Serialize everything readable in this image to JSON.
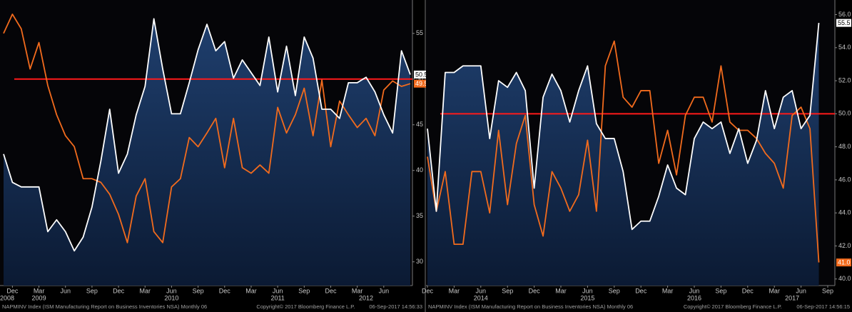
{
  "chart_data": [
    {
      "type": "line",
      "categories": [
        null,
        "Dec",
        null,
        null,
        "Mar",
        null,
        null,
        "Jun",
        null,
        null,
        "Sep",
        null,
        null,
        "Dec",
        null,
        null,
        "Mar",
        null,
        null,
        "Jun",
        null,
        null,
        "Sep",
        null,
        null,
        "Dec",
        null,
        null,
        "Mar",
        null,
        null,
        "Jun",
        null,
        null,
        "Sep",
        null,
        null,
        "Dec",
        null,
        null,
        "Mar",
        null,
        null,
        "Jun",
        null,
        null,
        null
      ],
      "years": [
        "2008",
        null,
        null,
        null,
        "2009",
        null,
        null,
        null,
        null,
        null,
        null,
        null,
        null,
        null,
        null,
        null,
        null,
        null,
        null,
        "2010",
        null,
        null,
        null,
        null,
        null,
        null,
        null,
        null,
        null,
        null,
        null,
        "2011",
        null,
        null,
        null,
        null,
        null,
        null,
        null,
        null,
        null,
        "2012",
        null,
        null,
        null,
        null,
        null
      ],
      "series": [
        {
          "color": "#ffffff",
          "area": true,
          "values": [
            41.8,
            38.7,
            38.2,
            38.2,
            38.2,
            33.3,
            34.6,
            33.3,
            31.2,
            32.7,
            36.0,
            41.0,
            46.7,
            39.7,
            41.8,
            46.1,
            49.2,
            56.6,
            51.1,
            46.2,
            46.2,
            49.6,
            53.2,
            56.0,
            53.1,
            54.1,
            50.1,
            52.1,
            50.7,
            49.3,
            54.6,
            48.6,
            53.6,
            48.2,
            54.6,
            52.3,
            46.7,
            46.7,
            45.7,
            49.6,
            49.6,
            50.2,
            48.6,
            46.1,
            44.1,
            53.1,
            50.5
          ]
        },
        {
          "color": "#f26b1d",
          "area": false,
          "values": [
            55.0,
            57.1,
            55.5,
            51.1,
            54.0,
            49.3,
            46.1,
            43.8,
            42.6,
            39.1,
            39.1,
            38.7,
            37.4,
            35.2,
            32.1,
            37.2,
            39.1,
            33.3,
            32.1,
            38.2,
            39.1,
            43.6,
            42.6,
            44.1,
            45.7,
            40.3,
            45.7,
            40.3,
            39.7,
            40.6,
            39.7,
            46.9,
            44.1,
            46.1,
            49.0,
            43.8,
            49.9,
            42.6,
            47.6,
            46.1,
            44.7,
            45.7,
            43.8,
            48.8,
            49.8,
            49.2,
            49.5
          ]
        }
      ],
      "ylim": [
        27.4,
        58.5
      ],
      "yticks": [
        30,
        35,
        40,
        45,
        50,
        55
      ],
      "hline": 50,
      "hline_color": "#ff1a1a",
      "grid": false,
      "source": "NAPMINV Index (ISM Manufacturing Report on Business Inventories NSA)  Monthly 06",
      "copyright": "Copyright© 2017 Bloomberg Finance L.P.",
      "timestamp": "06-Sep-2017 14:56:33"
    },
    {
      "type": "line",
      "categories": [
        "Dec",
        null,
        null,
        "Mar",
        null,
        null,
        "Jun",
        null,
        null,
        "Sep",
        null,
        null,
        "Dec",
        null,
        null,
        "Mar",
        null,
        null,
        "Jun",
        null,
        null,
        "Sep",
        null,
        null,
        "Dec",
        null,
        null,
        "Mar",
        null,
        null,
        "Jun",
        null,
        null,
        "Sep",
        null,
        null,
        "Dec",
        null,
        null,
        "Mar",
        null,
        null,
        "Jun",
        null,
        null,
        "Sep"
      ],
      "years": [
        null,
        null,
        null,
        null,
        null,
        null,
        "2014",
        null,
        null,
        null,
        null,
        null,
        null,
        null,
        null,
        null,
        null,
        null,
        "2015",
        null,
        null,
        null,
        null,
        null,
        null,
        null,
        null,
        null,
        null,
        null,
        "2016",
        null,
        null,
        null,
        null,
        null,
        null,
        null,
        null,
        null,
        null,
        "2017",
        null,
        null,
        null,
        null
      ],
      "series": [
        {
          "color": "#ffffff",
          "area": true,
          "values": [
            49.1,
            44.1,
            52.5,
            52.5,
            52.9,
            52.9,
            52.9,
            48.5,
            52.0,
            51.6,
            52.5,
            51.4,
            45.5,
            51.0,
            52.4,
            51.4,
            49.5,
            51.4,
            52.9,
            49.4,
            48.5,
            48.5,
            46.5,
            43.0,
            43.5,
            43.5,
            45.0,
            46.9,
            45.5,
            45.1,
            48.5,
            49.5,
            49.1,
            49.5,
            47.6,
            49.1,
            47.0,
            48.4,
            51.4,
            49.1,
            51.0,
            51.4,
            49.1,
            49.9,
            55.5,
            null
          ]
        },
        {
          "color": "#f26b1d",
          "area": false,
          "values": [
            47.4,
            44.1,
            46.5,
            42.1,
            42.1,
            46.5,
            46.5,
            44.0,
            49.0,
            44.5,
            48.2,
            49.9,
            44.5,
            42.6,
            46.5,
            45.5,
            44.1,
            45.1,
            48.4,
            44.1,
            52.9,
            54.4,
            51.0,
            50.4,
            51.4,
            51.4,
            47.0,
            49.0,
            46.3,
            49.9,
            51.0,
            51.0,
            49.5,
            52.9,
            49.5,
            49.0,
            49.0,
            48.5,
            47.6,
            47.0,
            45.5,
            49.9,
            50.4,
            49.1,
            41.0,
            null
          ],
          "value_labels": [
            null,
            null,
            null,
            null,
            null,
            null,
            null,
            null,
            null,
            null,
            null,
            null,
            null,
            null,
            null,
            null,
            null,
            null,
            null,
            null,
            null,
            null,
            null,
            null,
            null,
            null,
            null,
            null,
            null,
            null,
            null,
            null,
            null,
            null,
            null,
            null,
            null,
            null,
            null,
            null,
            null,
            null,
            null,
            null,
            "41.0",
            null
          ]
        }
      ],
      "ylim": [
        39.6,
        56.8
      ],
      "yticks": [
        {
          "value": 40,
          "label": "40.0"
        },
        {
          "value": 42,
          "label": "42.0"
        },
        {
          "value": 44,
          "label": "44.0"
        },
        {
          "value": 46,
          "label": "46.0"
        },
        {
          "value": 48,
          "label": "48.0"
        },
        {
          "value": 50,
          "label": "50.0"
        },
        {
          "value": 52,
          "label": "52.0"
        },
        {
          "value": 54,
          "label": "54.0"
        },
        {
          "value": 56,
          "label": "56.0"
        }
      ],
      "hline": 50,
      "hline_color": "#ff1a1a",
      "grid": false,
      "source": "NAPMINV Index (ISM Manufacturing Report on Business Inventories NSA)  Monthly 06",
      "copyright": "Copyright© 2017 Bloomberg Finance L.P.",
      "timestamp": "06-Sep-2017 14:56:15"
    }
  ]
}
